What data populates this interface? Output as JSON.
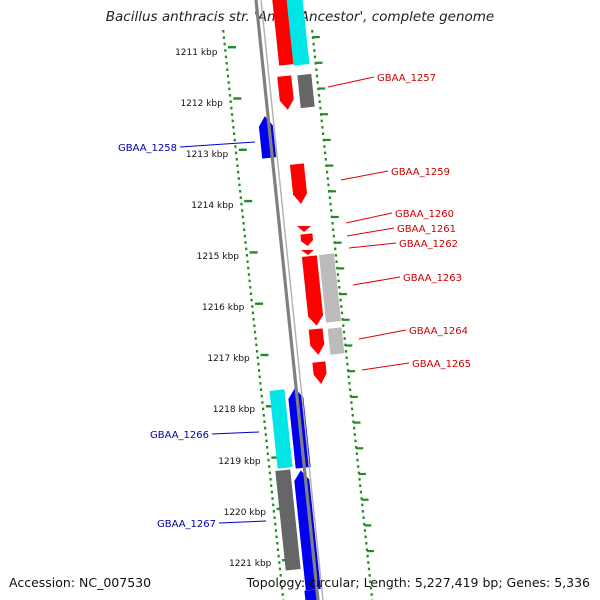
{
  "title": "Bacillus anthracis str. 'Ames Ancestor', complete genome",
  "accession": "Accession: NC_007530",
  "topology": "Topology: circular; Length: 5,227,419 bp; Genes: 5,336",
  "colors": {
    "forward_gene": "#ff0000",
    "reverse_gene": "#0000ee",
    "feature_cyan": "#00e6e6",
    "feature_gray": "#666666",
    "feature_lightgray": "#bbbbbb",
    "backbone": "#808080",
    "tick": "#228b22",
    "forward_label": "#cc0000",
    "reverse_label": "#0000aa"
  },
  "scale": {
    "unit": "kbp",
    "labels": [
      "1211 kbp",
      "1212 kbp",
      "1213 kbp",
      "1214 kbp",
      "1215 kbp",
      "1216 kbp",
      "1217 kbp",
      "1218 kbp",
      "1219 kbp",
      "1220 kbp",
      "1221 kbp"
    ]
  },
  "genes": [
    {
      "label": "GBAA_1257",
      "strand": "forward"
    },
    {
      "label": "GBAA_1258",
      "strand": "reverse"
    },
    {
      "label": "GBAA_1259",
      "strand": "forward"
    },
    {
      "label": "GBAA_1260",
      "strand": "forward"
    },
    {
      "label": "GBAA_1261",
      "strand": "forward"
    },
    {
      "label": "GBAA_1262",
      "strand": "forward"
    },
    {
      "label": "GBAA_1263",
      "strand": "forward"
    },
    {
      "label": "GBAA_1264",
      "strand": "forward"
    },
    {
      "label": "GBAA_1265",
      "strand": "forward"
    },
    {
      "label": "GBAA_1266",
      "strand": "reverse"
    },
    {
      "label": "GBAA_1267",
      "strand": "reverse"
    }
  ]
}
